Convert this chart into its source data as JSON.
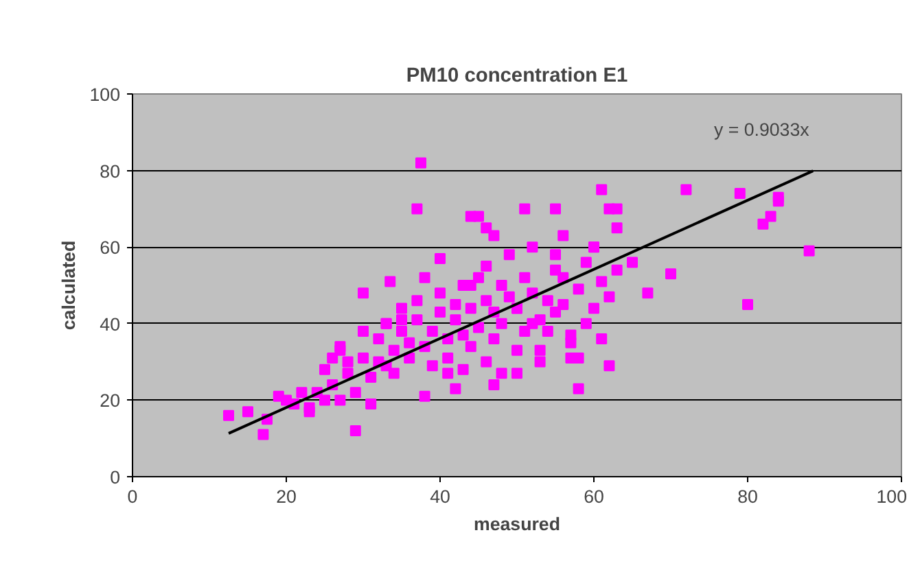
{
  "chart_data": {
    "type": "scatter",
    "title": "PM10 concentration E1",
    "xlabel": "measured",
    "ylabel": "calculated",
    "xlim": [
      0,
      100
    ],
    "ylim": [
      0,
      100
    ],
    "xticks": [
      0,
      20,
      40,
      60,
      80,
      100
    ],
    "yticks": [
      0,
      20,
      40,
      60,
      80,
      100
    ],
    "grid": "y",
    "annotations": [
      "y = 0.9033x"
    ],
    "series": [
      {
        "color": "#ff00ff",
        "marker": "square",
        "x": [
          12.5,
          15,
          17,
          17.5,
          19,
          20,
          22,
          23,
          25,
          29,
          31,
          33.5,
          37.5,
          37,
          38,
          38,
          44,
          45,
          46,
          47,
          47,
          50,
          51,
          55,
          56,
          57,
          57,
          58,
          60,
          62,
          62,
          63,
          63,
          65,
          67,
          70,
          72,
          79,
          80,
          82,
          83,
          84,
          84,
          88,
          61,
          58,
          53,
          54,
          52,
          42,
          46,
          48,
          41,
          43,
          21,
          23,
          24,
          25,
          26,
          26,
          27,
          27,
          28,
          28,
          29,
          30,
          30,
          31,
          32,
          32,
          33,
          33,
          34,
          34,
          35,
          35,
          36,
          36,
          37,
          37,
          38,
          39,
          39,
          40,
          40,
          41,
          41,
          42,
          42,
          43,
          43,
          44,
          44,
          45,
          45,
          46,
          46,
          47,
          47,
          48,
          48,
          49,
          49,
          50,
          50,
          51,
          51,
          52,
          52,
          53,
          53,
          54,
          55,
          55,
          56,
          56,
          57,
          58,
          59,
          59,
          60,
          60,
          61,
          61,
          62,
          63,
          35,
          40,
          44,
          50,
          55,
          30,
          27,
          33
        ],
        "values": [
          16,
          17,
          11,
          15,
          21,
          20,
          22,
          17,
          20,
          12,
          19,
          51,
          82,
          70,
          21,
          52,
          68,
          68,
          65,
          63,
          24,
          27,
          70,
          70,
          63,
          35,
          31,
          23,
          60,
          29,
          70,
          70,
          65,
          56,
          48,
          53,
          75,
          74,
          45,
          66,
          68,
          72,
          73,
          59,
          75,
          31,
          33,
          38,
          40,
          23,
          30,
          27,
          27,
          28,
          19,
          18,
          22,
          28,
          24,
          31,
          20,
          34,
          27,
          30,
          22,
          31,
          38,
          26,
          30,
          36,
          29,
          40,
          33,
          27,
          38,
          44,
          31,
          35,
          41,
          46,
          34,
          29,
          38,
          43,
          48,
          36,
          31,
          45,
          41,
          50,
          37,
          34,
          44,
          52,
          39,
          46,
          55,
          43,
          36,
          50,
          40,
          58,
          47,
          33,
          44,
          52,
          38,
          48,
          60,
          41,
          30,
          46,
          54,
          43,
          52,
          45,
          37,
          49,
          56,
          40,
          60,
          44,
          36,
          51,
          47,
          54,
          41,
          57,
          50,
          44,
          58,
          48,
          33,
          40
        ]
      },
      {
        "type": "line",
        "color": "#000000",
        "marker": "none",
        "x": [
          12.5,
          88.5
        ],
        "values": [
          11.3,
          79.9
        ]
      }
    ]
  }
}
